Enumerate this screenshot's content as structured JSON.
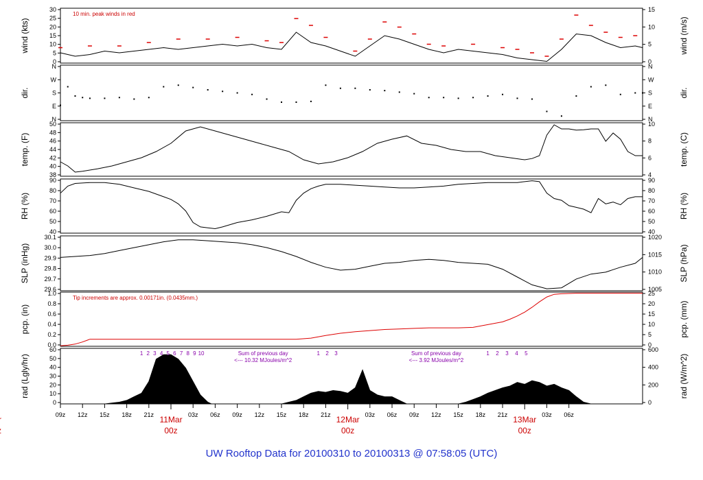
{
  "chart_data": {
    "type": "line",
    "title": "UW Rooftop Data for 20100310  to  20100313 @ 07:58:05  (UTC)",
    "x_range_hours": [
      0,
      79
    ],
    "x_ticks": [
      "09z",
      "12z",
      "15z",
      "18z",
      "21z",
      "03z",
      "06z",
      "09z",
      "12z",
      "15z",
      "18z",
      "21z",
      "03z",
      "06z",
      "09z",
      "12z",
      "15z",
      "18z",
      "21z",
      "03z",
      "06z"
    ],
    "day_labels": [
      {
        "month_day": "11Mar",
        "hour": "00z"
      },
      {
        "month_day": "12Mar",
        "hour": "00z"
      },
      {
        "month_day": "13Mar",
        "hour": "00z"
      },
      {
        "month_day": "Mar",
        "hour": "z"
      }
    ],
    "panels": [
      {
        "id": "wind",
        "ylabel_left": "wind (kts)",
        "ylabel_right": "wind (m/s)",
        "ylim_left": [
          0,
          32
        ],
        "ylim_right": [
          0,
          16.46
        ],
        "yticks_left": [
          "0",
          "5",
          "10",
          "15",
          "20",
          "25",
          "30"
        ],
        "yticks_right": [
          "0",
          "5",
          "10",
          "15"
        ],
        "annotation": "10 min. peak winds in red",
        "series": [
          {
            "name": "wind speed",
            "color": "#000000",
            "x": [
              0,
              2,
              4,
              6,
              8,
              10,
              12,
              14,
              16,
              18,
              20,
              22,
              24,
              26,
              28,
              30,
              32,
              34,
              36,
              38,
              40,
              42,
              44,
              46,
              48,
              50,
              52,
              54,
              56,
              58,
              60,
              62,
              64,
              66,
              68,
              70,
              72,
              74,
              76,
              78,
              79
            ],
            "y": [
              6,
              4,
              5,
              7,
              6,
              7,
              8,
              9,
              8,
              9,
              10,
              11,
              10,
              11,
              9,
              8,
              18,
              12,
              10,
              7,
              4,
              10,
              16,
              14,
              11,
              8,
              6,
              8,
              7,
              6,
              5,
              3,
              2,
              1,
              8,
              17,
              16,
              12,
              9,
              10,
              9
            ]
          },
          {
            "name": "10 min. peak",
            "color": "#dd0000",
            "x": [
              0,
              4,
              8,
              12,
              16,
              20,
              24,
              28,
              30,
              32,
              34,
              36,
              40,
              42,
              44,
              46,
              48,
              50,
              52,
              56,
              60,
              62,
              64,
              66,
              68,
              70,
              72,
              74,
              76,
              78
            ],
            "y": [
              9,
              10,
              10,
              12,
              14,
              14,
              15,
              13,
              12,
              26,
              22,
              15,
              7,
              14,
              24,
              21,
              17,
              11,
              10,
              11,
              9,
              8,
              6,
              4,
              14,
              28,
              22,
              18,
              15,
              16
            ]
          }
        ]
      },
      {
        "id": "dir",
        "ylabel_left": "dir.",
        "ylabel_right": "dir.",
        "ylim_left": [
          0,
          360
        ],
        "yticks_left": [
          "N",
          "E",
          "S",
          "W",
          "N"
        ],
        "yticks_right": [
          "N",
          "E",
          "S",
          "W",
          "N"
        ],
        "series": [
          {
            "name": "wind direction (deg)",
            "color": "#000000",
            "x": [
              0,
              1,
              2,
              3,
              4,
              6,
              8,
              10,
              12,
              14,
              16,
              18,
              20,
              22,
              24,
              26,
              28,
              30,
              32,
              34,
              36,
              38,
              40,
              42,
              44,
              46,
              48,
              50,
              52,
              54,
              56,
              58,
              60,
              62,
              64,
              66,
              68,
              70,
              72,
              74,
              76,
              78,
              79
            ],
            "y": [
              100,
              220,
              160,
              150,
              145,
              145,
              150,
              140,
              150,
              220,
              230,
              215,
              200,
              190,
              180,
              170,
              140,
              120,
              120,
              125,
              230,
              210,
              210,
              200,
              195,
              185,
              175,
              150,
              150,
              145,
              150,
              160,
              170,
              145,
              140,
              60,
              30,
              160,
              220,
              230,
              170,
              180,
              180
            ]
          }
        ]
      },
      {
        "id": "temp",
        "ylabel_left": "temp. (F)",
        "ylabel_right": "temp. (C)",
        "ylim_left": [
          38,
          51
        ],
        "ylim_right": [
          3.33,
          10.56
        ],
        "yticks_left": [
          "38",
          "40",
          "42",
          "44",
          "46",
          "48",
          "50"
        ],
        "yticks_right": [
          "4",
          "6",
          "8",
          "10"
        ],
        "series": [
          {
            "name": "temperature",
            "color": "#000000",
            "x": [
              0,
              1,
              2,
              3,
              5,
              7,
              9,
              11,
              13,
              15,
              17,
              19,
              21,
              23,
              25,
              27,
              29,
              31,
              33,
              35,
              37,
              39,
              41,
              43,
              45,
              47,
              49,
              51,
              53,
              55,
              57,
              59,
              61,
              63,
              64,
              65,
              66,
              67,
              68,
              69,
              70,
              71,
              72,
              73,
              74,
              75,
              76,
              77,
              78,
              79
            ],
            "y": [
              41.5,
              40.5,
              39,
              39.2,
              39.8,
              40.5,
              41.5,
              42.5,
              44,
              46,
              49,
              50,
              49,
              48,
              47,
              46,
              45,
              44,
              42,
              41,
              41.5,
              42.5,
              44,
              46,
              47,
              47.8,
              46,
              45.5,
              44.5,
              44,
              44,
              43,
              42.5,
              42,
              42.3,
              43,
              48,
              50.5,
              49.5,
              49.5,
              49.2,
              49.3,
              49.5,
              49.5,
              46.5,
              48.5,
              47,
              44,
              43,
              43
            ]
          }
        ]
      },
      {
        "id": "rh",
        "ylabel_left": "RH (%)",
        "ylabel_right": "RH (%)",
        "ylim_left": [
          35,
          96
        ],
        "yticks_left": [
          "40",
          "50",
          "60",
          "70",
          "80",
          "90"
        ],
        "yticks_right": [
          "40",
          "50",
          "60",
          "70",
          "80",
          "90"
        ],
        "series": [
          {
            "name": "relative humidity",
            "color": "#000000",
            "x": [
              0,
              1,
              2,
              4,
              6,
              8,
              10,
              12,
              14,
              15,
              16,
              17,
              18,
              19,
              20,
              21,
              22,
              24,
              26,
              28,
              30,
              31,
              32,
              33,
              34,
              35,
              36,
              37,
              38,
              40,
              42,
              44,
              46,
              48,
              50,
              52,
              54,
              56,
              58,
              60,
              62,
              63,
              64,
              65,
              66,
              67,
              68,
              69,
              70,
              71,
              72,
              73,
              74,
              75,
              76,
              77,
              78,
              79
            ],
            "y": [
              80,
              88,
              91,
              92,
              92,
              90,
              86,
              82,
              76,
              73,
              68,
              60,
              47,
              42,
              41,
              40,
              42,
              47,
              50,
              54,
              59,
              58,
              72,
              80,
              85,
              88,
              90,
              90,
              90,
              89,
              88,
              87,
              86,
              86,
              87,
              88,
              90,
              91,
              92,
              92,
              92,
              93,
              94,
              93,
              80,
              74,
              72,
              66,
              64,
              62,
              58,
              74,
              68,
              70,
              67,
              74,
              76,
              76
            ]
          }
        ]
      },
      {
        "id": "slp",
        "ylabel_left": "SLP (inHg)",
        "ylabel_right": "SLP (hPa)",
        "ylim_left": [
          29.6,
          30.16
        ],
        "ylim_right": [
          1002.4,
          1021.3
        ],
        "yticks_left": [
          "29.6",
          "29.7",
          "29.8",
          "29.9",
          "30.0",
          "30.1"
        ],
        "yticks_right": [
          "1005",
          "1010",
          "1015",
          "1020"
        ],
        "series": [
          {
            "name": "sea level pressure",
            "color": "#000000",
            "x": [
              0,
              2,
              4,
              6,
              8,
              10,
              12,
              14,
              16,
              18,
              20,
              22,
              24,
              26,
              28,
              30,
              32,
              34,
              36,
              38,
              40,
              42,
              44,
              46,
              48,
              50,
              52,
              54,
              56,
              58,
              60,
              62,
              64,
              66,
              68,
              70,
              72,
              74,
              76,
              78,
              79
            ],
            "y": [
              29.94,
              29.95,
              29.96,
              29.98,
              30.01,
              30.04,
              30.07,
              30.1,
              30.12,
              30.12,
              30.11,
              30.1,
              30.09,
              30.07,
              30.04,
              30.0,
              29.95,
              29.89,
              29.84,
              29.81,
              29.82,
              29.85,
              29.88,
              29.89,
              29.91,
              29.92,
              29.91,
              29.89,
              29.88,
              29.87,
              29.82,
              29.74,
              29.66,
              29.62,
              29.63,
              29.72,
              29.77,
              29.79,
              29.84,
              29.88,
              29.94
            ]
          }
        ]
      },
      {
        "id": "pcp",
        "ylabel_left": "pcp. (in)",
        "ylabel_right": "pcp. (mm)",
        "ylim_left": [
          0,
          1.0
        ],
        "ylim_right": [
          0,
          25.4
        ],
        "yticks_left": [
          "0.0",
          "0.2",
          "0.4",
          "0.6",
          "0.8",
          "1.0"
        ],
        "yticks_right": [
          "0",
          "5",
          "10",
          "15",
          "20",
          "25"
        ],
        "annotation": "Tip increments are approx. 0.00171in. (0.0435mm.)",
        "series": [
          {
            "name": "accumulated precipitation",
            "color": "#dd0000",
            "x": [
              0,
              1,
              2,
              3,
              4,
              6,
              10,
              14,
              18,
              20,
              22,
              26,
              28,
              30,
              32,
              34,
              36,
              38,
              40,
              42,
              44,
              46,
              48,
              50,
              52,
              54,
              56,
              58,
              60,
              61,
              62,
              63,
              64,
              65,
              66,
              67,
              68,
              70,
              74,
              79
            ],
            "y": [
              0.01,
              0.02,
              0.04,
              0.08,
              0.13,
              0.13,
              0.13,
              0.13,
              0.13,
              0.13,
              0.13,
              0.13,
              0.13,
              0.13,
              0.13,
              0.15,
              0.2,
              0.24,
              0.27,
              0.29,
              0.31,
              0.32,
              0.33,
              0.34,
              0.34,
              0.34,
              0.35,
              0.4,
              0.45,
              0.5,
              0.56,
              0.63,
              0.72,
              0.82,
              0.91,
              0.96,
              0.97,
              0.98,
              0.98,
              0.98
            ]
          }
        ]
      },
      {
        "id": "rad",
        "ylabel_left": "rad (Lgly/hr)",
        "ylabel_right": "rad (W/m^2)",
        "ylim_left": [
          0,
          62
        ],
        "ylim_right": [
          0,
          721
        ],
        "yticks_left": [
          "0",
          "10",
          "20",
          "30",
          "40",
          "50",
          "60"
        ],
        "yticks_right": [
          "0",
          "200",
          "400",
          "600"
        ],
        "series": [
          {
            "name": "solar radiation",
            "color": "#000000",
            "fill": true,
            "x": [
              0,
              5,
              6,
              7,
              8,
              9,
              10,
              11,
              12,
              13,
              14,
              15,
              16,
              17,
              18,
              19,
              20,
              20.5,
              21,
              22,
              23,
              30,
              31,
              32,
              33,
              34,
              35,
              36,
              37,
              38,
              39,
              40,
              41,
              42,
              43,
              44,
              45,
              46,
              47,
              54,
              55,
              56,
              57,
              58,
              59,
              60,
              61,
              62,
              63,
              64,
              65,
              66,
              67,
              68,
              69,
              70,
              71,
              72,
              73
            ],
            "y": [
              0,
              0,
              0,
              1,
              2,
              4,
              8,
              12,
              25,
              50,
              55,
              55,
              50,
              40,
              25,
              10,
              2,
              0,
              0,
              0,
              0,
              0,
              2,
              4,
              8,
              12,
              14,
              13,
              15,
              14,
              12,
              18,
              38,
              15,
              10,
              8,
              8,
              4,
              0,
              0,
              2,
              5,
              8,
              12,
              15,
              18,
              20,
              24,
              22,
              26,
              24,
              20,
              22,
              18,
              15,
              8,
              2,
              0,
              0
            ]
          }
        ],
        "markers_day1": [
          "1",
          "2",
          "3",
          "4",
          "5",
          "6",
          "7",
          "8",
          "9",
          "10"
        ],
        "markers_day2": [
          "1",
          "2",
          "3"
        ],
        "markers_day3": [
          "1",
          "2",
          "3",
          "4",
          "5"
        ],
        "note_day2": [
          "Sum of previous day",
          "<--- 10.32 MJoules/m^2"
        ],
        "note_day3": [
          "Sum of previous day",
          "<--- 3.92 MJoules/m^2"
        ]
      }
    ]
  }
}
